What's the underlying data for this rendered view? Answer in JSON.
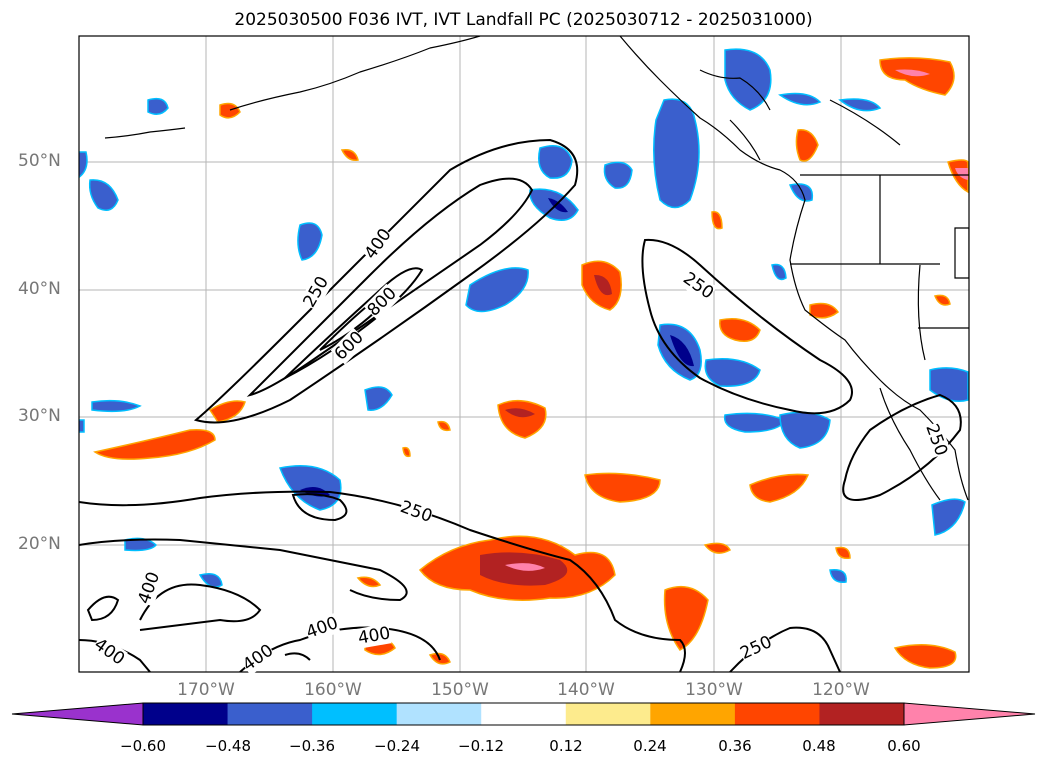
{
  "title": "2025030500 F036 IVT, IVT Landfall PC (2025030712 - 2025031000)",
  "lat_labels": [
    "50°N",
    "40°N",
    "30°N",
    "20°N"
  ],
  "lon_labels": [
    "170°W",
    "160°W",
    "150°W",
    "140°W",
    "130°W",
    "120°W"
  ],
  "contour_labels": [
    "250",
    "400",
    "600",
    "800",
    "250",
    "250",
    "250",
    "400",
    "400",
    "400",
    "400",
    "400",
    "250",
    "250"
  ],
  "colorbar": {
    "ticks": [
      "−0.60",
      "−0.48",
      "−0.36",
      "−0.24",
      "−0.12",
      "0.12",
      "0.24",
      "0.36",
      "0.48",
      "0.60"
    ],
    "colors": [
      "#9a32cd",
      "#00008b",
      "#3a5fcd",
      "#00bfff",
      "#b0e2ff",
      "#ffffff",
      "#fdeb8d",
      "#ffa500",
      "#ff4500",
      "#b22222",
      "#ff82ab"
    ]
  }
}
